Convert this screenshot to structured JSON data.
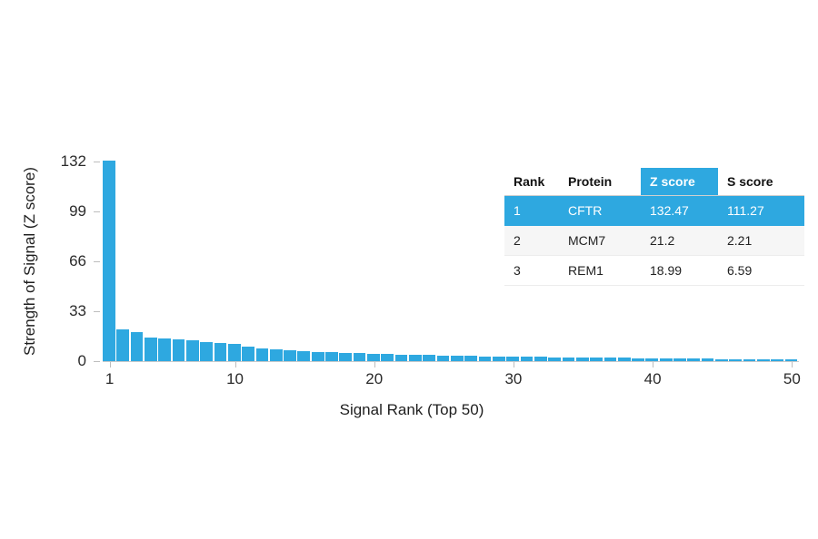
{
  "colors": {
    "accent": "#2EA8E0",
    "bar": "#2EA8E0",
    "axis_line": "#c9c9c9"
  },
  "chart_data": {
    "type": "bar",
    "title": "",
    "xlabel": "Signal Rank (Top 50)",
    "ylabel": "Strength of Signal (Z score)",
    "ylim": [
      0,
      132
    ],
    "y_ticks": [
      132,
      99,
      66,
      33,
      0
    ],
    "x_ticks": [
      1,
      10,
      20,
      30,
      40,
      50
    ],
    "legend": "none",
    "grid": "off",
    "categories_note": "signal rank 1 through 50",
    "values": [
      132.47,
      21.2,
      18.99,
      15.6,
      15.0,
      14.3,
      13.6,
      12.9,
      12.1,
      11.2,
      9.6,
      8.7,
      7.9,
      7.3,
      6.8,
      6.3,
      5.9,
      5.6,
      5.3,
      5.0,
      4.7,
      4.5,
      4.3,
      4.1,
      3.9,
      3.7,
      3.5,
      3.3,
      3.1,
      3.0,
      2.9,
      2.8,
      2.7,
      2.6,
      2.5,
      2.4,
      2.3,
      2.2,
      2.1,
      2.0,
      1.9,
      1.8,
      1.7,
      1.6,
      1.5,
      1.4,
      1.35,
      1.3,
      1.25,
      1.2
    ]
  },
  "table": {
    "headers": [
      "Rank",
      "Protein",
      "Z score",
      "S score"
    ],
    "rows": [
      {
        "rank": "1",
        "protein": "CFTR",
        "z": "132.47",
        "s": "111.27",
        "highlight": true
      },
      {
        "rank": "2",
        "protein": "MCM7",
        "z": "21.2",
        "s": "2.21",
        "highlight": false
      },
      {
        "rank": "3",
        "protein": "REM1",
        "z": "18.99",
        "s": "6.59",
        "highlight": false
      }
    ]
  }
}
